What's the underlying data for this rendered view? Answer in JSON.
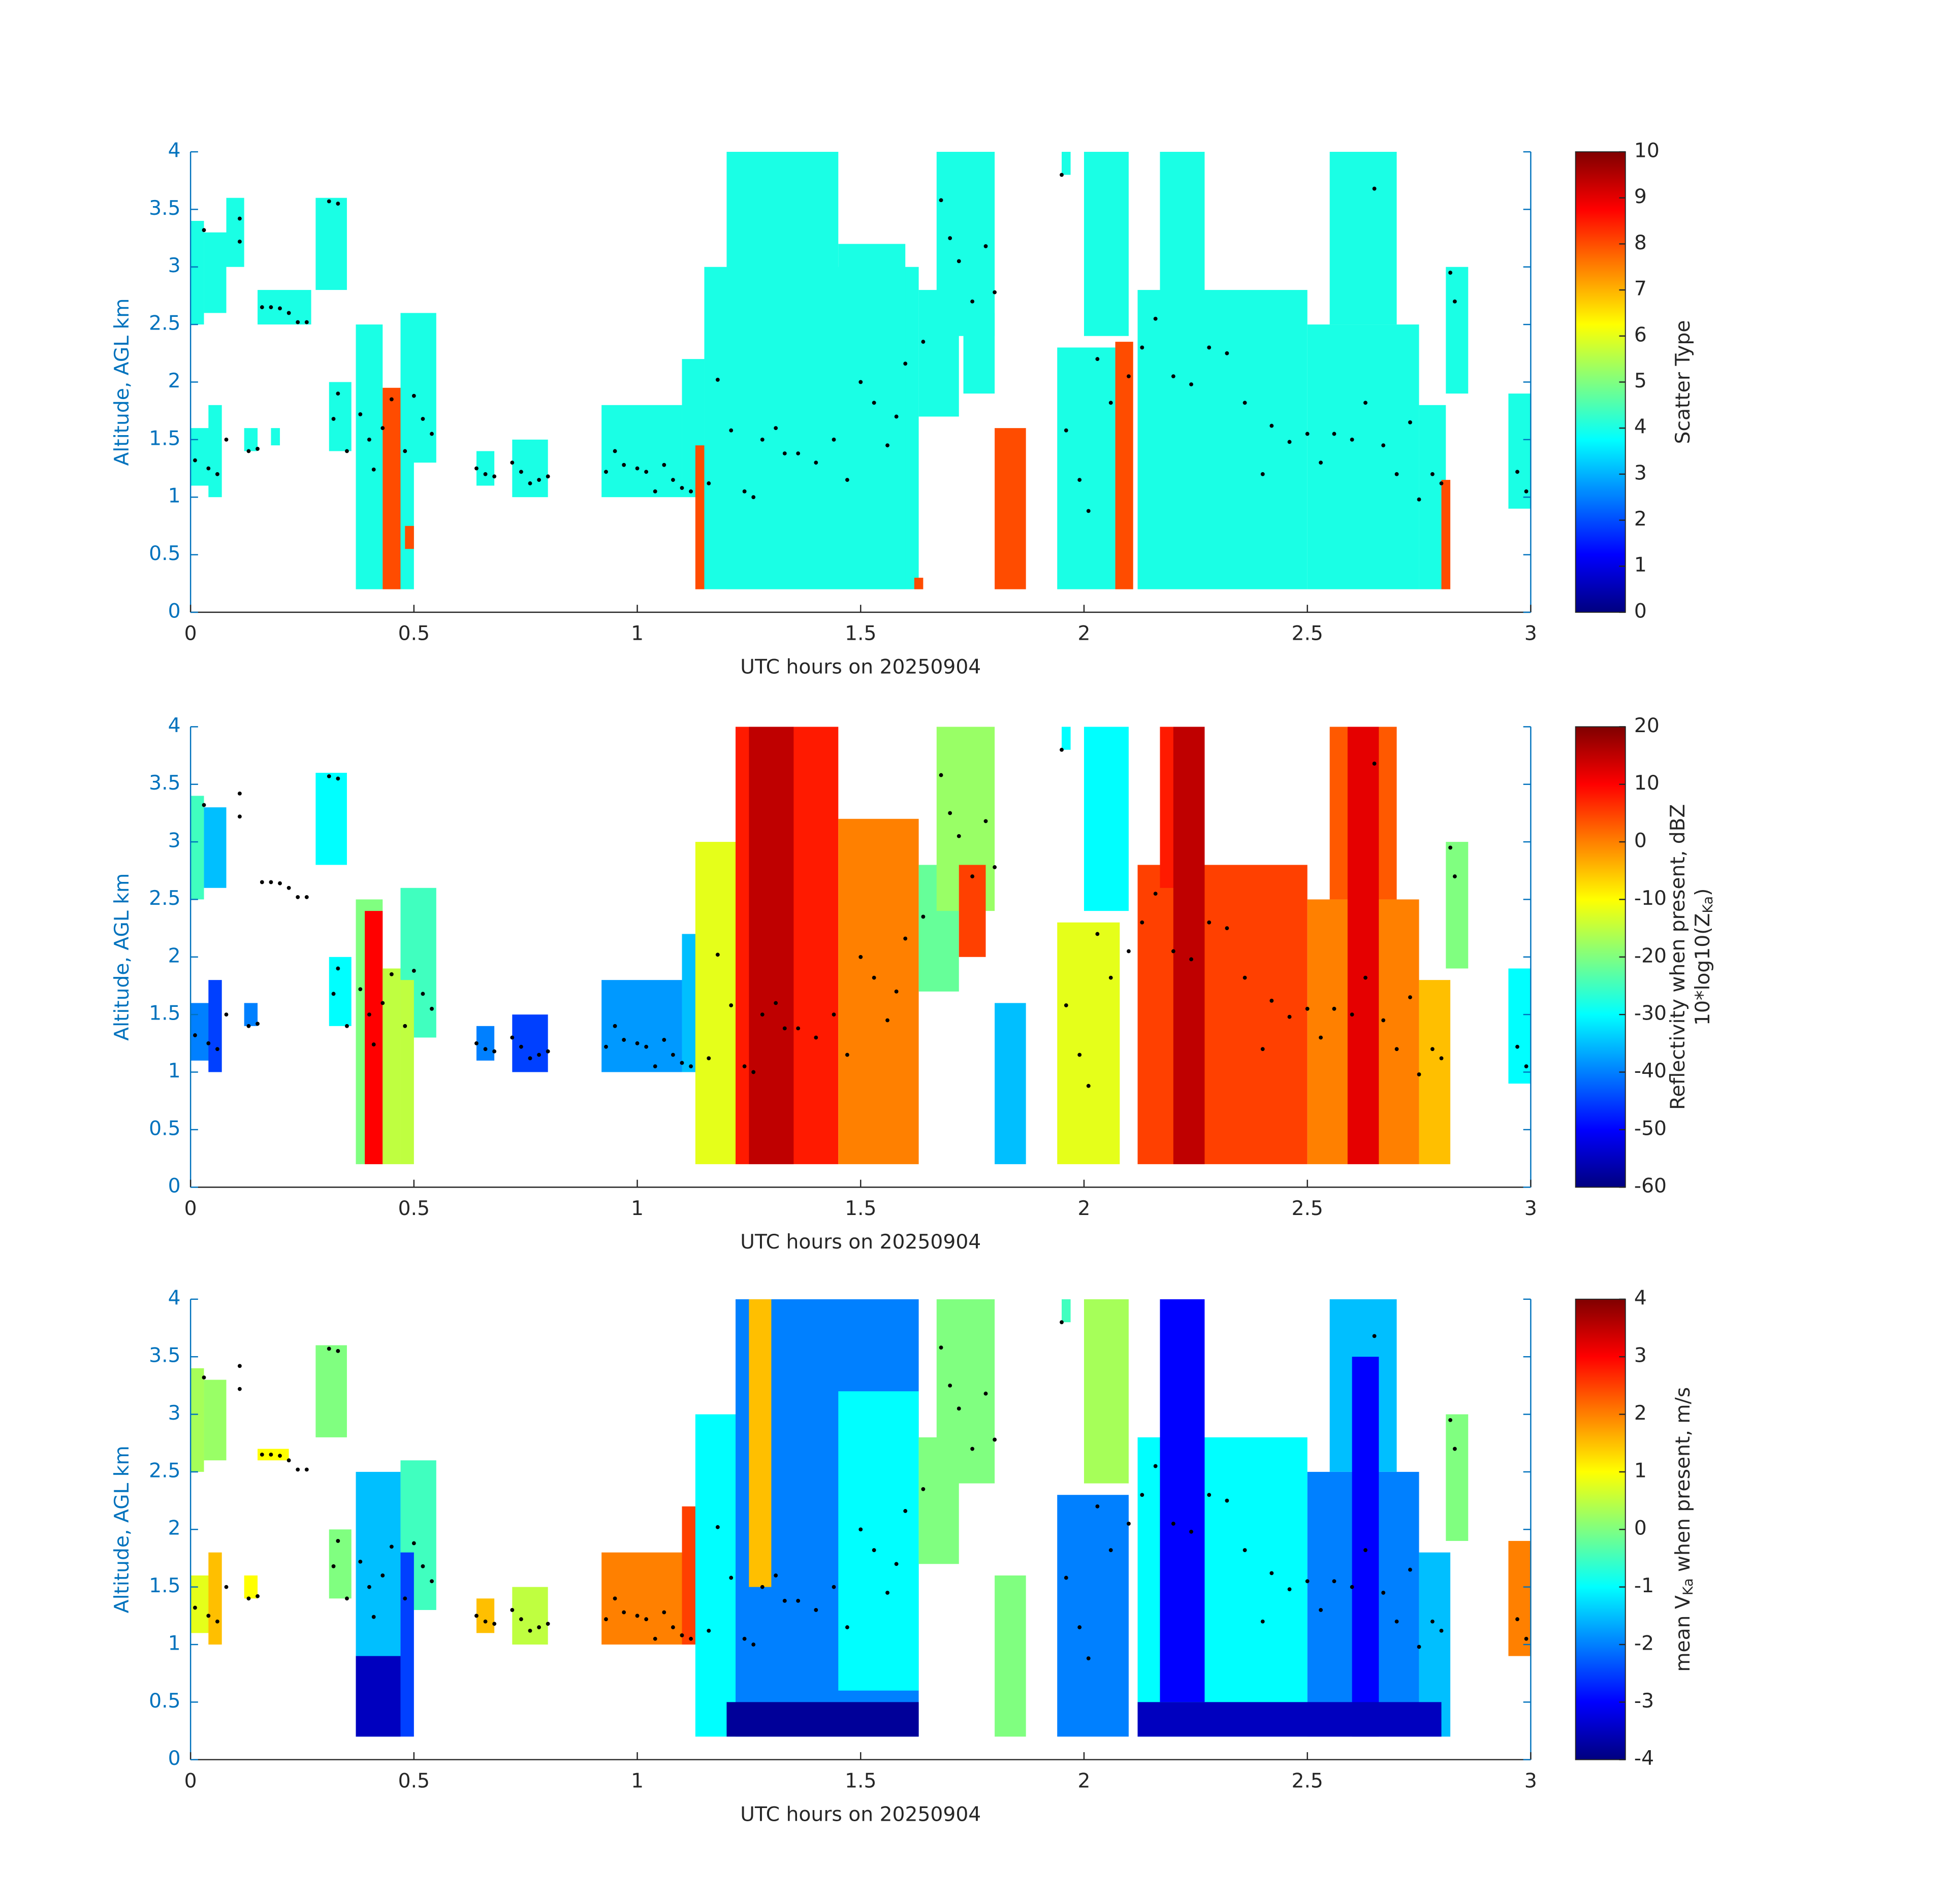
{
  "chart_data": [
    {
      "type": "heatmap",
      "xlabel": "UTC hours on 20250904",
      "ylabel": "Altitude, AGL km",
      "xlim": [
        0,
        3
      ],
      "xticks": [
        0,
        0.5,
        1,
        1.5,
        2,
        2.5,
        3
      ],
      "ylim": [
        0,
        4
      ],
      "yticks": [
        0,
        0.5,
        1,
        1.5,
        2,
        2.5,
        3,
        3.5,
        4
      ],
      "clim": [
        0,
        10
      ],
      "cticks": [
        0,
        1,
        2,
        3,
        4,
        5,
        6,
        7,
        8,
        9,
        10
      ],
      "colormap": "jet",
      "colorbar_label": [
        [
          "Scatter Type"
        ]
      ],
      "cells": [
        [
          0,
          0.03,
          2.5,
          3.4,
          4
        ],
        [
          0.03,
          0.08,
          2.6,
          3.3,
          4
        ],
        [
          0.08,
          0.12,
          3.0,
          3.6,
          4
        ],
        [
          0.15,
          0.27,
          2.5,
          2.8,
          4
        ],
        [
          0.28,
          0.35,
          2.8,
          3.6,
          4
        ],
        [
          0,
          0.05,
          1.1,
          1.6,
          4
        ],
        [
          0.04,
          0.07,
          1.0,
          1.8,
          4
        ],
        [
          0.12,
          0.15,
          1.4,
          1.6,
          4
        ],
        [
          0.18,
          0.2,
          1.45,
          1.6,
          4
        ],
        [
          0.31,
          0.36,
          1.4,
          2.0,
          4
        ],
        [
          0.37,
          0.43,
          0.2,
          2.5,
          4
        ],
        [
          0.43,
          0.47,
          0.2,
          1.9,
          4
        ],
        [
          0.47,
          0.55,
          1.3,
          2.6,
          4
        ],
        [
          0.47,
          0.5,
          0.2,
          1.8,
          4
        ],
        [
          0.64,
          0.68,
          1.1,
          1.4,
          4
        ],
        [
          0.72,
          0.8,
          1.0,
          1.5,
          4
        ],
        [
          0.92,
          1.1,
          1.0,
          1.8,
          4
        ],
        [
          1.1,
          1.15,
          1.0,
          2.2,
          4
        ],
        [
          1.15,
          1.63,
          0.2,
          3.0,
          4
        ],
        [
          1.2,
          1.45,
          0.2,
          4.0,
          4
        ],
        [
          1.45,
          1.6,
          0.2,
          3.2,
          4
        ],
        [
          1.63,
          1.72,
          1.7,
          2.8,
          4
        ],
        [
          1.67,
          1.8,
          2.4,
          4.0,
          4
        ],
        [
          1.73,
          1.8,
          1.9,
          2.6,
          4
        ],
        [
          1.94,
          2.08,
          0.2,
          2.3,
          4
        ],
        [
          1.95,
          1.97,
          3.8,
          4.0,
          4
        ],
        [
          2.0,
          2.1,
          2.4,
          4.0,
          4
        ],
        [
          2.12,
          2.5,
          0.2,
          2.8,
          4
        ],
        [
          2.17,
          2.27,
          2.6,
          4.0,
          4
        ],
        [
          2.5,
          2.75,
          0.2,
          2.5,
          4
        ],
        [
          2.55,
          2.7,
          2.5,
          4.0,
          4
        ],
        [
          2.75,
          2.81,
          0.2,
          1.8,
          4
        ],
        [
          2.81,
          2.86,
          1.9,
          3.0,
          4
        ],
        [
          2.95,
          3.0,
          0.9,
          1.9,
          4
        ],
        [
          0.43,
          0.47,
          0.2,
          1.95,
          8
        ],
        [
          0.48,
          0.5,
          0.55,
          0.75,
          8
        ],
        [
          1.13,
          1.15,
          0.2,
          1.45,
          8
        ],
        [
          1.8,
          1.87,
          0.2,
          1.6,
          8
        ],
        [
          2.07,
          2.11,
          0.2,
          2.35,
          8
        ],
        [
          2.8,
          2.82,
          0.2,
          1.15,
          8
        ],
        [
          1.62,
          1.64,
          0.2,
          0.3,
          8
        ]
      ]
    },
    {
      "type": "heatmap",
      "xlabel": "UTC hours on 20250904",
      "ylabel": "Altitude, AGL km",
      "xlim": [
        0,
        3
      ],
      "xticks": [
        0,
        0.5,
        1,
        1.5,
        2,
        2.5,
        3
      ],
      "ylim": [
        0,
        4
      ],
      "yticks": [
        0,
        0.5,
        1,
        1.5,
        2,
        2.5,
        3,
        3.5,
        4
      ],
      "clim": [
        -60,
        20
      ],
      "cticks": [
        -60,
        -50,
        -40,
        -30,
        -20,
        -10,
        0,
        10,
        20
      ],
      "colormap": "jet",
      "colorbar_label": [
        [
          "Reflectivity when present, dBZ"
        ],
        [
          "10*log10(Z",
          "Ka",
          ")"
        ]
      ],
      "cells": [
        [
          0,
          0.03,
          2.5,
          3.4,
          -25
        ],
        [
          0.03,
          0.08,
          2.6,
          3.3,
          -35
        ],
        [
          0.28,
          0.35,
          2.8,
          3.6,
          -30
        ],
        [
          0,
          0.05,
          1.1,
          1.6,
          -40
        ],
        [
          0.04,
          0.07,
          1.0,
          1.8,
          -45
        ],
        [
          0.12,
          0.15,
          1.4,
          1.6,
          -40
        ],
        [
          0.31,
          0.36,
          1.4,
          2.0,
          -30
        ],
        [
          0.37,
          0.43,
          0.2,
          2.5,
          -20
        ],
        [
          0.39,
          0.43,
          0.2,
          2.4,
          10
        ],
        [
          0.43,
          0.47,
          0.2,
          1.9,
          -15
        ],
        [
          0.47,
          0.55,
          1.3,
          2.6,
          -25
        ],
        [
          0.47,
          0.5,
          0.2,
          1.8,
          -15
        ],
        [
          0.64,
          0.68,
          1.1,
          1.4,
          -40
        ],
        [
          0.72,
          0.8,
          1.0,
          1.5,
          -45
        ],
        [
          0.92,
          1.1,
          1.0,
          1.8,
          -38
        ],
        [
          1.1,
          1.15,
          1.0,
          2.2,
          -35
        ],
        [
          1.13,
          1.25,
          0.2,
          3.0,
          -12
        ],
        [
          1.22,
          1.45,
          0.2,
          4.0,
          8
        ],
        [
          1.25,
          1.35,
          0.2,
          4.0,
          15
        ],
        [
          1.45,
          1.63,
          0.2,
          3.2,
          0
        ],
        [
          1.63,
          1.72,
          1.7,
          2.8,
          -22
        ],
        [
          1.67,
          1.8,
          2.4,
          4.0,
          -18
        ],
        [
          1.72,
          1.78,
          2.0,
          2.8,
          5
        ],
        [
          1.8,
          1.87,
          0.2,
          1.6,
          -35
        ],
        [
          1.94,
          2.08,
          0.2,
          2.3,
          -12
        ],
        [
          1.95,
          1.97,
          3.8,
          4.0,
          -30
        ],
        [
          2.0,
          2.1,
          2.4,
          4.0,
          -30
        ],
        [
          2.12,
          2.5,
          0.2,
          2.8,
          5
        ],
        [
          2.17,
          2.27,
          2.6,
          4.0,
          8
        ],
        [
          2.2,
          2.27,
          0.2,
          4.0,
          15
        ],
        [
          2.5,
          2.75,
          0.2,
          2.5,
          0
        ],
        [
          2.55,
          2.7,
          2.5,
          4.0,
          3
        ],
        [
          2.59,
          2.66,
          0.2,
          4.0,
          12
        ],
        [
          2.75,
          2.82,
          0.2,
          1.8,
          -5
        ],
        [
          2.81,
          2.86,
          1.9,
          3.0,
          -20
        ],
        [
          2.95,
          3.0,
          0.9,
          1.9,
          -30
        ]
      ]
    },
    {
      "type": "heatmap",
      "xlabel": "UTC hours on 20250904",
      "ylabel": "Altitude, AGL km",
      "xlim": [
        0,
        3
      ],
      "xticks": [
        0,
        0.5,
        1,
        1.5,
        2,
        2.5,
        3
      ],
      "ylim": [
        0,
        4
      ],
      "yticks": [
        0,
        0.5,
        1,
        1.5,
        2,
        2.5,
        3,
        3.5,
        4
      ],
      "clim": [
        -4,
        4
      ],
      "cticks": [
        -4,
        -3,
        -2,
        -1,
        0,
        1,
        2,
        3,
        4
      ],
      "colormap": "jet",
      "colorbar_label": [
        [
          "mean V",
          "Ka",
          " when present, m/s"
        ]
      ],
      "cells": [
        [
          0,
          0.03,
          2.5,
          3.4,
          0.3
        ],
        [
          0.03,
          0.08,
          2.6,
          3.3,
          0.2
        ],
        [
          0.28,
          0.35,
          2.8,
          3.6,
          0
        ],
        [
          0,
          0.05,
          1.1,
          1.6,
          0.8
        ],
        [
          0.04,
          0.07,
          1.0,
          1.8,
          1.5
        ],
        [
          0.12,
          0.15,
          1.4,
          1.6,
          1
        ],
        [
          0.15,
          0.22,
          2.6,
          2.7,
          1
        ],
        [
          0.31,
          0.36,
          1.4,
          2.0,
          0
        ],
        [
          0.37,
          0.47,
          0.2,
          2.5,
          -1.5
        ],
        [
          0.37,
          0.47,
          0.2,
          0.9,
          -3.5
        ],
        [
          0.47,
          0.55,
          1.3,
          2.6,
          -0.5
        ],
        [
          0.47,
          0.5,
          0.2,
          1.8,
          -2.5
        ],
        [
          0.64,
          0.68,
          1.1,
          1.4,
          1.5
        ],
        [
          0.72,
          0.8,
          1.0,
          1.5,
          0.5
        ],
        [
          0.92,
          1.15,
          1.0,
          1.8,
          2
        ],
        [
          1.1,
          1.15,
          1.0,
          2.2,
          2.5
        ],
        [
          1.13,
          1.25,
          0.2,
          3.0,
          -1
        ],
        [
          1.22,
          1.63,
          0.2,
          4.0,
          -2
        ],
        [
          1.25,
          1.3,
          1.5,
          4.0,
          1.5
        ],
        [
          1.45,
          1.63,
          0.6,
          3.2,
          -1
        ],
        [
          1.2,
          1.63,
          0.2,
          0.5,
          -3.8
        ],
        [
          1.63,
          1.72,
          1.7,
          2.8,
          0
        ],
        [
          1.67,
          1.8,
          2.4,
          4.0,
          0
        ],
        [
          1.8,
          1.87,
          0.2,
          1.6,
          0
        ],
        [
          1.94,
          2.1,
          0.2,
          2.3,
          -2
        ],
        [
          1.95,
          1.97,
          3.8,
          4.0,
          -0.5
        ],
        [
          2.0,
          2.1,
          2.4,
          4.0,
          0.3
        ],
        [
          2.12,
          2.5,
          0.2,
          2.8,
          -1
        ],
        [
          2.17,
          2.27,
          0.5,
          4.0,
          -3
        ],
        [
          2.5,
          2.75,
          0.2,
          2.5,
          -2
        ],
        [
          2.55,
          2.7,
          2.5,
          4.0,
          -1.5
        ],
        [
          2.6,
          2.66,
          0.2,
          3.5,
          -3
        ],
        [
          2.75,
          2.82,
          0.2,
          1.8,
          -1.5
        ],
        [
          2.81,
          2.86,
          1.9,
          3.0,
          0
        ],
        [
          2.12,
          2.8,
          0.2,
          0.5,
          -3.5
        ],
        [
          2.95,
          3.0,
          0.9,
          1.9,
          2
        ]
      ]
    }
  ],
  "markers": {
    "color": "#000000",
    "x": [
      0.01,
      0.03,
      0.04,
      0.06,
      0.08,
      0.11,
      0.11,
      0.13,
      0.15,
      0.16,
      0.18,
      0.2,
      0.22,
      0.24,
      0.26,
      0.31,
      0.32,
      0.33,
      0.33,
      0.35,
      0.38,
      0.4,
      0.41,
      0.43,
      0.45,
      0.48,
      0.5,
      0.52,
      0.54,
      0.64,
      0.66,
      0.68,
      0.72,
      0.74,
      0.76,
      0.78,
      0.8,
      0.93,
      0.95,
      0.97,
      1.0,
      1.02,
      1.04,
      1.06,
      1.08,
      1.1,
      1.12,
      1.16,
      1.18,
      1.21,
      1.24,
      1.26,
      1.28,
      1.31,
      1.33,
      1.36,
      1.4,
      1.44,
      1.47,
      1.5,
      1.53,
      1.56,
      1.58,
      1.6,
      1.64,
      1.68,
      1.7,
      1.72,
      1.75,
      1.78,
      1.8,
      1.95,
      1.96,
      1.99,
      2.01,
      2.03,
      2.06,
      2.1,
      2.13,
      2.16,
      2.2,
      2.24,
      2.28,
      2.32,
      2.36,
      2.4,
      2.42,
      2.46,
      2.5,
      2.53,
      2.56,
      2.6,
      2.63,
      2.65,
      2.67,
      2.7,
      2.73,
      2.75,
      2.78,
      2.8,
      2.82,
      2.83,
      2.97,
      2.99
    ],
    "y": [
      1.32,
      3.32,
      1.25,
      1.2,
      1.5,
      3.42,
      3.22,
      1.4,
      1.42,
      2.65,
      2.65,
      2.64,
      2.6,
      2.52,
      2.52,
      3.57,
      1.68,
      3.55,
      1.9,
      1.4,
      1.72,
      1.5,
      1.24,
      1.6,
      1.85,
      1.4,
      1.88,
      1.68,
      1.55,
      1.25,
      1.2,
      1.18,
      1.3,
      1.22,
      1.12,
      1.15,
      1.18,
      1.22,
      1.4,
      1.28,
      1.25,
      1.22,
      1.05,
      1.28,
      1.15,
      1.08,
      1.05,
      1.12,
      2.02,
      1.58,
      1.05,
      1.0,
      1.5,
      1.6,
      1.38,
      1.38,
      1.3,
      1.5,
      1.15,
      2.0,
      1.82,
      1.45,
      1.7,
      2.16,
      2.35,
      3.58,
      3.25,
      3.05,
      2.7,
      3.18,
      2.78,
      3.8,
      1.58,
      1.15,
      0.88,
      2.2,
      1.82,
      2.05,
      2.3,
      2.55,
      2.05,
      1.98,
      2.3,
      2.25,
      1.82,
      1.2,
      1.62,
      1.48,
      1.55,
      1.3,
      1.55,
      1.5,
      1.82,
      3.68,
      1.45,
      1.2,
      1.65,
      0.98,
      1.2,
      1.12,
      2.95,
      2.7,
      1.22,
      1.05
    ]
  }
}
